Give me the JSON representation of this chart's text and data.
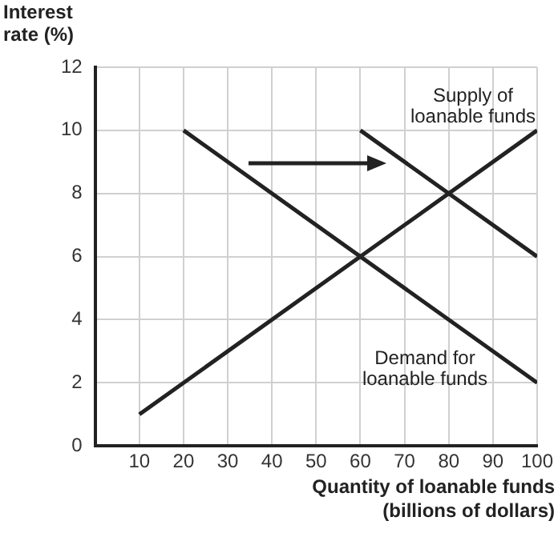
{
  "chart_data": {
    "type": "line",
    "xlabel": "Quantity of loanable funds (billions of dollars)",
    "ylabel": "Interest rate (%)",
    "xlim": [
      0,
      100
    ],
    "xticks": [
      10,
      20,
      30,
      40,
      50,
      60,
      70,
      80,
      90,
      100
    ],
    "ylim": [
      0,
      12
    ],
    "yticks": [
      0,
      2,
      4,
      6,
      8,
      10,
      12
    ],
    "grid": true,
    "legend": false,
    "marker": "none",
    "line_style": "solid",
    "series": [
      {
        "name": "Supply of loanable funds",
        "color": "#222222",
        "x": [
          10,
          100
        ],
        "values": [
          1,
          10
        ]
      },
      {
        "name": "Demand for loanable funds",
        "color": "#222222",
        "x": [
          20,
          100
        ],
        "values": [
          10,
          2
        ]
      },
      {
        "color": "#222222",
        "x": [
          60,
          100
        ],
        "values": [
          10,
          6
        ]
      }
    ]
  }
}
